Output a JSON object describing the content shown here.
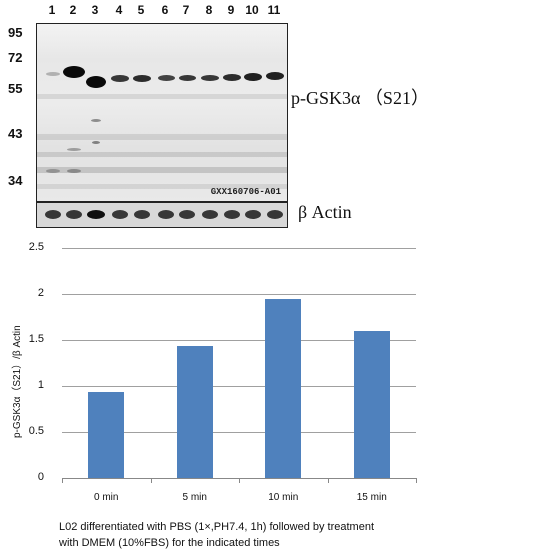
{
  "blot": {
    "lanes": [
      "1",
      "2",
      "3",
      "4",
      "5",
      "6",
      "7",
      "8",
      "9",
      "10",
      "11"
    ],
    "mw_markers": [
      "95",
      "72",
      "55",
      "43",
      "34"
    ],
    "protein_label": "p-GSK3α （S21）",
    "loading_control_label": "β Actin",
    "stamp": "GXX160706-A01"
  },
  "chart_data": {
    "type": "bar",
    "categories": [
      "0 min",
      "5 min",
      "10 min",
      "15 min"
    ],
    "values": [
      0.94,
      1.44,
      1.95,
      1.6
    ],
    "ylabel": "p-GSK3α（S21）/β Actin",
    "ylim": [
      0,
      2.5
    ],
    "yticks": [
      "0",
      "0.5",
      "1",
      "1.5",
      "2",
      "2.5"
    ],
    "grid": true,
    "bar_color": "#4f81bd"
  },
  "caption": {
    "line1": "L02 differentiated with PBS (1×,PH7.4, 1h) followed by treatment",
    "line2": "with DMEM (10%FBS) for the indicated times"
  }
}
